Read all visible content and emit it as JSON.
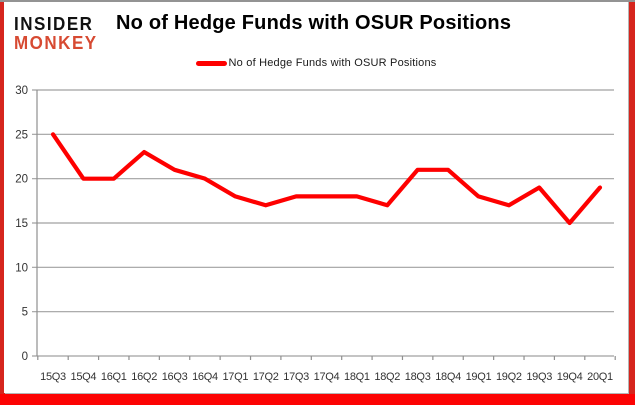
{
  "logo": {
    "line1": "INSIDER",
    "line2": "MONKEY",
    "line2_color": "#d74a32"
  },
  "title": "No of Hedge Funds with OSUR Positions",
  "legend": {
    "label": "No of Hedge Funds with OSUR Positions",
    "marker_color": "#fe0000"
  },
  "chart_data": {
    "type": "line",
    "title": "No of Hedge Funds with OSUR Positions",
    "categories": [
      "15Q3",
      "15Q4",
      "16Q1",
      "16Q2",
      "16Q3",
      "16Q4",
      "17Q1",
      "17Q2",
      "17Q3",
      "17Q4",
      "18Q1",
      "18Q2",
      "18Q3",
      "18Q4",
      "19Q1",
      "19Q2",
      "19Q3",
      "19Q4",
      "20Q1"
    ],
    "series": [
      {
        "name": "No of Hedge Funds with OSUR Positions",
        "color": "#fe0000",
        "values": [
          25,
          20,
          20,
          23,
          21,
          20,
          18,
          17,
          18,
          18,
          18,
          17,
          21,
          21,
          18,
          17,
          19,
          15,
          19
        ]
      }
    ],
    "xlabel": "",
    "ylabel": "",
    "ylim": [
      0,
      30
    ],
    "yticks": [
      0,
      5,
      10,
      15,
      20,
      25,
      30
    ],
    "grid": true,
    "legend_position": "top-center",
    "styles": {
      "gridline_color": "#a0a0a0",
      "axis_color": "#8f8f8f",
      "tick_label_color": "#333333",
      "frame_color": "#d6251d",
      "bottom_band_color": "#fc0303",
      "top_line_color": "#939393",
      "plot_background": "#ffffff"
    }
  }
}
